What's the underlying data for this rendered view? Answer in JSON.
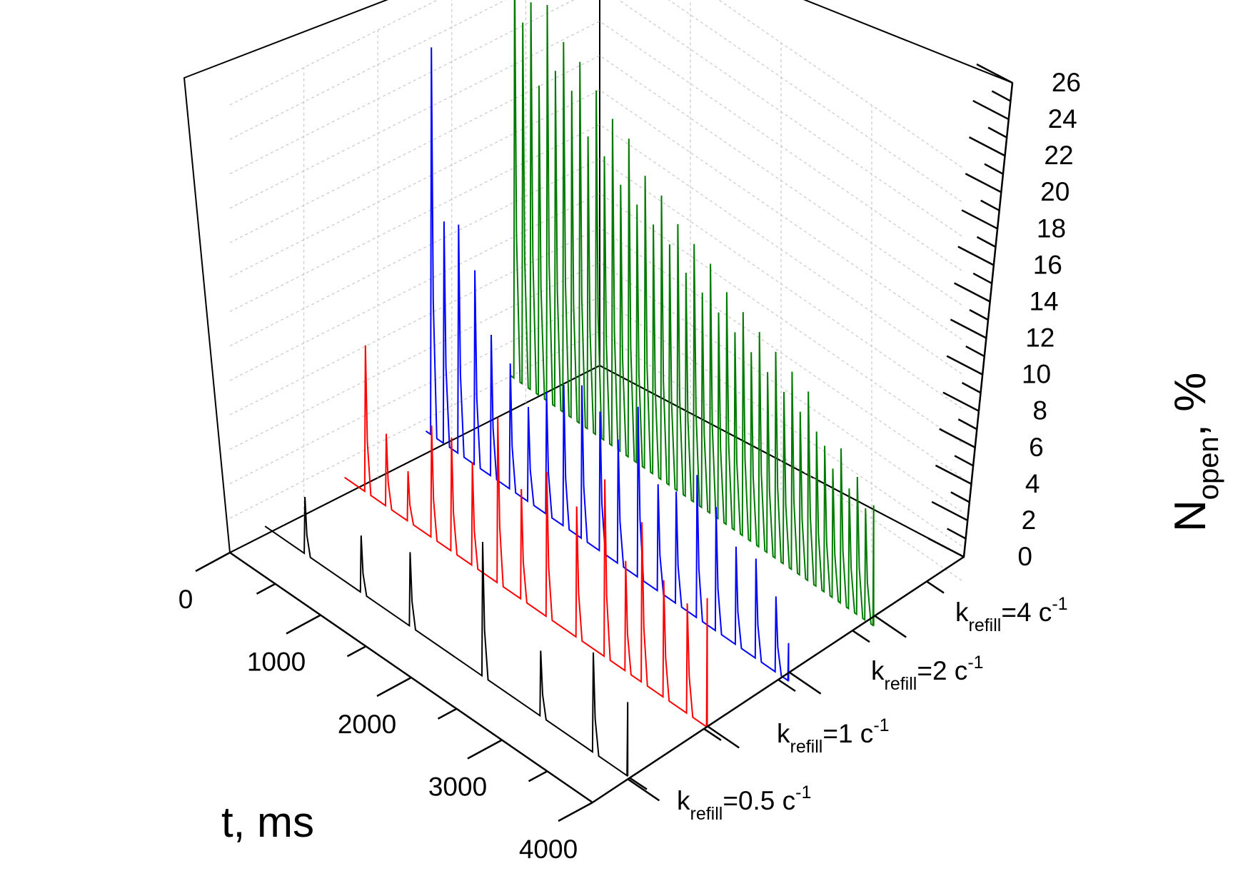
{
  "chart_data": {
    "type": "line",
    "subtype": "3d-waterfall",
    "title": "",
    "xlabel": "t, ms",
    "zlabel": {
      "main": "N",
      "sub": "open",
      "suffix": ", %"
    },
    "x_ticks": [
      "0",
      "1000",
      "2000",
      "3000",
      "4000"
    ],
    "z_ticks": [
      "0",
      "2",
      "4",
      "6",
      "8",
      "10",
      "12",
      "14",
      "16",
      "18",
      "20",
      "22",
      "24",
      "26"
    ],
    "xlim": [
      0,
      4000
    ],
    "zlim": [
      0,
      26
    ],
    "grid": true,
    "series": [
      {
        "name": "k_refill=0.5 c^-1",
        "label": {
          "base": "k",
          "sub": "refill",
          "mid": "=0.5 c",
          "sup": "-1"
        },
        "color": "#000000",
        "baseline": 0.5,
        "spikes": [
          {
            "t": 440,
            "peak": 3.8
          },
          {
            "t": 1060,
            "peak": 3.8
          },
          {
            "t": 1600,
            "peak": 4.8
          },
          {
            "t": 2400,
            "peak": 8.3
          },
          {
            "t": 3040,
            "peak": 4.3
          },
          {
            "t": 3620,
            "peak": 6.3
          },
          {
            "t": 4000,
            "peak": 4.8
          }
        ]
      },
      {
        "name": "k_refill=1 c^-1",
        "label": {
          "base": "k",
          "sub": "refill",
          "mid": "=1 c",
          "sup": "-1"
        },
        "color": "#ff0000",
        "baseline": 1.0,
        "spikes": [
          {
            "t": 230,
            "peak": 9.5
          },
          {
            "t": 460,
            "peak": 5.2
          },
          {
            "t": 700,
            "peak": 3.9
          },
          {
            "t": 960,
            "peak": 7.5
          },
          {
            "t": 1180,
            "peak": 7.6
          },
          {
            "t": 1410,
            "peak": 7.0
          },
          {
            "t": 1690,
            "peak": 10.6
          },
          {
            "t": 1950,
            "peak": 7.4
          },
          {
            "t": 2230,
            "peak": 9.4
          },
          {
            "t": 2560,
            "peak": 8.6
          },
          {
            "t": 2870,
            "peak": 11.3
          },
          {
            "t": 3100,
            "peak": 7.4
          },
          {
            "t": 3280,
            "peak": 10.3
          },
          {
            "t": 3520,
            "peak": 7.8
          },
          {
            "t": 3780,
            "peak": 7.4
          },
          {
            "t": 4000,
            "peak": 8.5
          }
        ]
      },
      {
        "name": "k_refill=2 c^-1",
        "label": {
          "base": "k",
          "sub": "refill",
          "mid": "=2 c",
          "sup": "-1"
        },
        "color": "#0000ff",
        "baseline": 1.3,
        "spikes": [
          {
            "t": 60,
            "peak": 23.8
          },
          {
            "t": 200,
            "peak": 14.2
          },
          {
            "t": 360,
            "peak": 14.6
          },
          {
            "t": 540,
            "peak": 12.6
          },
          {
            "t": 720,
            "peak": 9.5
          },
          {
            "t": 930,
            "peak": 8.6
          },
          {
            "t": 1130,
            "peak": 6.8
          },
          {
            "t": 1330,
            "peak": 8.4
          },
          {
            "t": 1520,
            "peak": 9.5
          },
          {
            "t": 1720,
            "peak": 10.2
          },
          {
            "t": 1920,
            "peak": 9.4
          },
          {
            "t": 2120,
            "peak": 8.5
          },
          {
            "t": 2340,
            "peak": 11.2
          },
          {
            "t": 2560,
            "peak": 7.5
          },
          {
            "t": 2760,
            "peak": 7.8
          },
          {
            "t": 2990,
            "peak": 9.6
          },
          {
            "t": 3200,
            "peak": 8.5
          },
          {
            "t": 3420,
            "peak": 7.0
          },
          {
            "t": 3640,
            "peak": 7.1
          },
          {
            "t": 3860,
            "peak": 5.7
          },
          {
            "t": 4000,
            "peak": 3.5
          }
        ]
      },
      {
        "name": "k_refill=4 c^-1",
        "label": {
          "base": "k",
          "sub": "refill",
          "mid": "=4 c",
          "sup": "-1"
        },
        "color": "#007a00",
        "baseline": 2.0,
        "spikes": [
          {
            "t": 40,
            "peak": 26.0
          },
          {
            "t": 130,
            "peak": 23.0
          },
          {
            "t": 220,
            "peak": 24.5
          },
          {
            "t": 310,
            "peak": 20.0
          },
          {
            "t": 400,
            "peak": 25.0
          },
          {
            "t": 490,
            "peak": 21.5
          },
          {
            "t": 580,
            "peak": 23.5
          },
          {
            "t": 670,
            "peak": 21.0
          },
          {
            "t": 760,
            "peak": 23.0
          },
          {
            "t": 850,
            "peak": 19.0
          },
          {
            "t": 940,
            "peak": 22.0
          },
          {
            "t": 1030,
            "peak": 18.5
          },
          {
            "t": 1120,
            "peak": 21.0
          },
          {
            "t": 1210,
            "peak": 17.5
          },
          {
            "t": 1300,
            "peak": 20.5
          },
          {
            "t": 1390,
            "peak": 17.0
          },
          {
            "t": 1480,
            "peak": 19.0
          },
          {
            "t": 1570,
            "peak": 16.5
          },
          {
            "t": 1660,
            "peak": 18.5
          },
          {
            "t": 1750,
            "peak": 16.0
          },
          {
            "t": 1840,
            "peak": 17.5
          },
          {
            "t": 1930,
            "peak": 15.0
          },
          {
            "t": 2020,
            "peak": 17.0
          },
          {
            "t": 2110,
            "peak": 14.5
          },
          {
            "t": 2200,
            "peak": 16.5
          },
          {
            "t": 2290,
            "peak": 14.0
          },
          {
            "t": 2380,
            "peak": 15.5
          },
          {
            "t": 2470,
            "peak": 13.5
          },
          {
            "t": 2560,
            "peak": 15.0
          },
          {
            "t": 2650,
            "peak": 13.0
          },
          {
            "t": 2740,
            "peak": 14.5
          },
          {
            "t": 2830,
            "peak": 12.5
          },
          {
            "t": 2920,
            "peak": 14.0
          },
          {
            "t": 3010,
            "peak": 12.0
          },
          {
            "t": 3100,
            "peak": 13.5
          },
          {
            "t": 3190,
            "peak": 11.5
          },
          {
            "t": 3280,
            "peak": 13.0
          },
          {
            "t": 3370,
            "peak": 11.0
          },
          {
            "t": 3460,
            "peak": 10.5
          },
          {
            "t": 3550,
            "peak": 9.5
          },
          {
            "t": 3640,
            "peak": 11.0
          },
          {
            "t": 3730,
            "peak": 9.0
          },
          {
            "t": 3820,
            "peak": 10.0
          },
          {
            "t": 3910,
            "peak": 8.5
          },
          {
            "t": 4000,
            "peak": 9.0
          }
        ]
      }
    ]
  }
}
